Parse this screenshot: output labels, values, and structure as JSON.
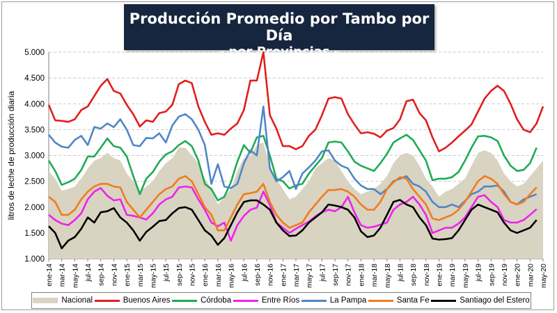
{
  "title": "Producción Promedio por Tambo por Día",
  "subtitle": "- por Provincias -",
  "chart_data": {
    "type": "line",
    "ylabel": "litros de leche de producción diaria",
    "ylim": [
      1000,
      5000
    ],
    "yticks": [
      "1.000",
      "1.500",
      "2.000",
      "2.500",
      "3.000",
      "3.500",
      "4.000",
      "4.500",
      "5.000"
    ],
    "ytick_values": [
      1000,
      1500,
      2000,
      2500,
      3000,
      3500,
      4000,
      4500,
      5000
    ],
    "x_tick_labels": [
      "ene-14",
      "mar-14",
      "may-14",
      "jul-14",
      "sep-14",
      "nov-14",
      "ene-15",
      "mar-15",
      "may-15",
      "jul-15",
      "sep-15",
      "nov-15",
      "ene-16",
      "mar-16",
      "may-16",
      "jul-16",
      "sep-16",
      "nov-16",
      "ene-17",
      "mar-17",
      "may-17",
      "jul-17",
      "sep-17",
      "nov-17",
      "ene-18",
      "mar-18",
      "may-18",
      "jul-18",
      "sep-18",
      "nov-18",
      "ene-19",
      "mar-19",
      "may-19",
      "jul-19",
      "sep-19",
      "nov-19",
      "ene-20",
      "mar-20",
      "may-20"
    ],
    "x_start": "ene-14",
    "x_end": "jun-20",
    "grid": "horizontal dashed",
    "legend_position": "bottom",
    "series": [
      {
        "name": "Nacional",
        "kind": "area",
        "color": "#d9d3c1",
        "values": [
          2700,
          2550,
          2320,
          2350,
          2400,
          2550,
          2750,
          2900,
          2950,
          3050,
          2950,
          2900,
          2650,
          2500,
          2300,
          2400,
          2500,
          2700,
          2850,
          2950,
          3150,
          3150,
          3000,
          2850,
          2550,
          2350,
          2050,
          2200,
          2350,
          2700,
          2950,
          3000,
          3200,
          3250,
          2800,
          2550,
          2350,
          2150,
          2200,
          2350,
          2500,
          2750,
          2850,
          2950,
          2900,
          2700,
          2500,
          2350,
          2250,
          2300,
          2350,
          2450,
          2600,
          2850,
          3000,
          3050,
          3000,
          2800,
          2550,
          2400,
          2200,
          2300,
          2350,
          2450,
          2550,
          2800,
          3050,
          3100,
          3050,
          2900,
          2650,
          2500,
          2400,
          2450,
          2600,
          2750,
          2900
        ]
      },
      {
        "name": "Buenos Aires",
        "kind": "line",
        "color": "#e01e1e",
        "values": [
          3980,
          3680,
          3670,
          3650,
          3700,
          3880,
          3950,
          4150,
          4350,
          4480,
          4250,
          4200,
          3980,
          3800,
          3560,
          3680,
          3650,
          3820,
          3850,
          3980,
          4380,
          4450,
          4400,
          3950,
          3650,
          3400,
          3430,
          3400,
          3520,
          3620,
          3880,
          4450,
          4450,
          5000,
          3780,
          3520,
          3180,
          3180,
          3120,
          3180,
          3380,
          3500,
          3780,
          4100,
          4130,
          4100,
          3800,
          3600,
          3430,
          3450,
          3420,
          3350,
          3480,
          3530,
          3700,
          4050,
          4080,
          3820,
          3680,
          3350,
          3080,
          3150,
          3250,
          3370,
          3480,
          3600,
          3850,
          4100,
          4250,
          4350,
          4250,
          4000,
          3700,
          3500,
          3450,
          3620,
          3950
        ]
      },
      {
        "name": "Córdoba",
        "kind": "line",
        "color": "#1faa55",
        "values": [
          2900,
          2700,
          2430,
          2480,
          2550,
          2720,
          2980,
          2980,
          3150,
          3330,
          3180,
          3150,
          2980,
          2600,
          2250,
          2550,
          2680,
          2880,
          3020,
          3080,
          3200,
          3280,
          3180,
          2900,
          2450,
          2350,
          2130,
          2200,
          2480,
          2880,
          3200,
          3050,
          3350,
          3380,
          3000,
          2550,
          2500,
          2360,
          2420,
          2450,
          2650,
          2800,
          2950,
          3250,
          3270,
          3250,
          3080,
          2880,
          2800,
          2750,
          2700,
          2850,
          3030,
          3250,
          3330,
          3400,
          3300,
          3100,
          2900,
          2520,
          2550,
          2550,
          2580,
          2680,
          2900,
          3150,
          3370,
          3380,
          3350,
          3280,
          3000,
          2800,
          2700,
          2720,
          2850,
          3150
        ]
      },
      {
        "name": "Entre Ríos",
        "kind": "line",
        "color": "#ee22ee",
        "values": [
          1850,
          1750,
          1680,
          1650,
          1750,
          1880,
          2150,
          2300,
          2370,
          2220,
          2130,
          2150,
          1850,
          1830,
          1800,
          1760,
          1880,
          2050,
          2150,
          2200,
          2380,
          2400,
          2380,
          2150,
          1950,
          1700,
          1630,
          1700,
          1350,
          1650,
          1830,
          1950,
          1990,
          2300,
          2040,
          1700,
          1600,
          1500,
          1580,
          1650,
          1720,
          1820,
          1900,
          1950,
          1920,
          2000,
          2200,
          1900,
          1650,
          1600,
          1620,
          1660,
          1700,
          1950,
          2050,
          2100,
          2200,
          2050,
          1850,
          1500,
          1550,
          1600,
          1600,
          1680,
          1800,
          2000,
          2200,
          2230,
          2100,
          2000,
          1750,
          1700,
          1700,
          1750,
          1850,
          1960
        ]
      },
      {
        "name": "La Pampa",
        "kind": "line",
        "color": "#4f86c6",
        "values": [
          3400,
          3250,
          3170,
          3150,
          3300,
          3380,
          3200,
          3550,
          3520,
          3620,
          3550,
          3700,
          3500,
          3200,
          3180,
          3340,
          3330,
          3430,
          3250,
          3580,
          3750,
          3800,
          3700,
          3500,
          3200,
          2450,
          2830,
          2400,
          2370,
          2450,
          2850,
          3100,
          3000,
          3950,
          2750,
          2500,
          2580,
          2700,
          2350,
          2650,
          2770,
          2900,
          3080,
          3100,
          2900,
          2800,
          2750,
          2550,
          2420,
          2350,
          2350,
          2250,
          2350,
          2500,
          2550,
          2600,
          2450,
          2400,
          2300,
          2100,
          2000,
          2000,
          2050,
          2000,
          2120,
          2250,
          2300,
          2400,
          2400,
          2420,
          2300,
          2100,
          2050,
          2150,
          2200,
          2250
        ]
      },
      {
        "name": "Santa Fe",
        "kind": "line",
        "color": "#f07c1c",
        "values": [
          2200,
          2100,
          1850,
          1850,
          1950,
          2150,
          2300,
          2400,
          2450,
          2450,
          2400,
          2380,
          2100,
          1950,
          1800,
          1950,
          2100,
          2250,
          2350,
          2400,
          2550,
          2600,
          2500,
          2250,
          2000,
          1850,
          1550,
          1550,
          1800,
          2050,
          2250,
          2270,
          2300,
          2450,
          2100,
          1850,
          1700,
          1600,
          1650,
          1700,
          1900,
          2050,
          2200,
          2330,
          2330,
          2350,
          2300,
          2200,
          2050,
          1950,
          1950,
          2100,
          2350,
          2480,
          2580,
          2550,
          2350,
          2200,
          2050,
          1780,
          1750,
          1800,
          1850,
          1950,
          2100,
          2300,
          2500,
          2600,
          2550,
          2450,
          2250,
          2100,
          2050,
          2100,
          2250,
          2380
        ]
      },
      {
        "name": "Santiago del Estero",
        "kind": "line",
        "color": "#000000",
        "values": [
          1630,
          1500,
          1200,
          1350,
          1420,
          1580,
          1800,
          1700,
          1900,
          1920,
          1980,
          1800,
          1700,
          1550,
          1350,
          1520,
          1620,
          1730,
          1750,
          1880,
          1980,
          2000,
          1950,
          1750,
          1550,
          1450,
          1270,
          1400,
          1650,
          1900,
          2100,
          2130,
          2130,
          2050,
          1950,
          1700,
          1550,
          1440,
          1450,
          1550,
          1700,
          1800,
          1900,
          2050,
          2030,
          2000,
          1950,
          1800,
          1530,
          1420,
          1450,
          1600,
          1850,
          2100,
          2140,
          2050,
          2000,
          1800,
          1650,
          1390,
          1370,
          1380,
          1400,
          1550,
          1750,
          1950,
          2050,
          2000,
          1950,
          1900,
          1700,
          1550,
          1500,
          1550,
          1600,
          1750
        ]
      }
    ]
  }
}
